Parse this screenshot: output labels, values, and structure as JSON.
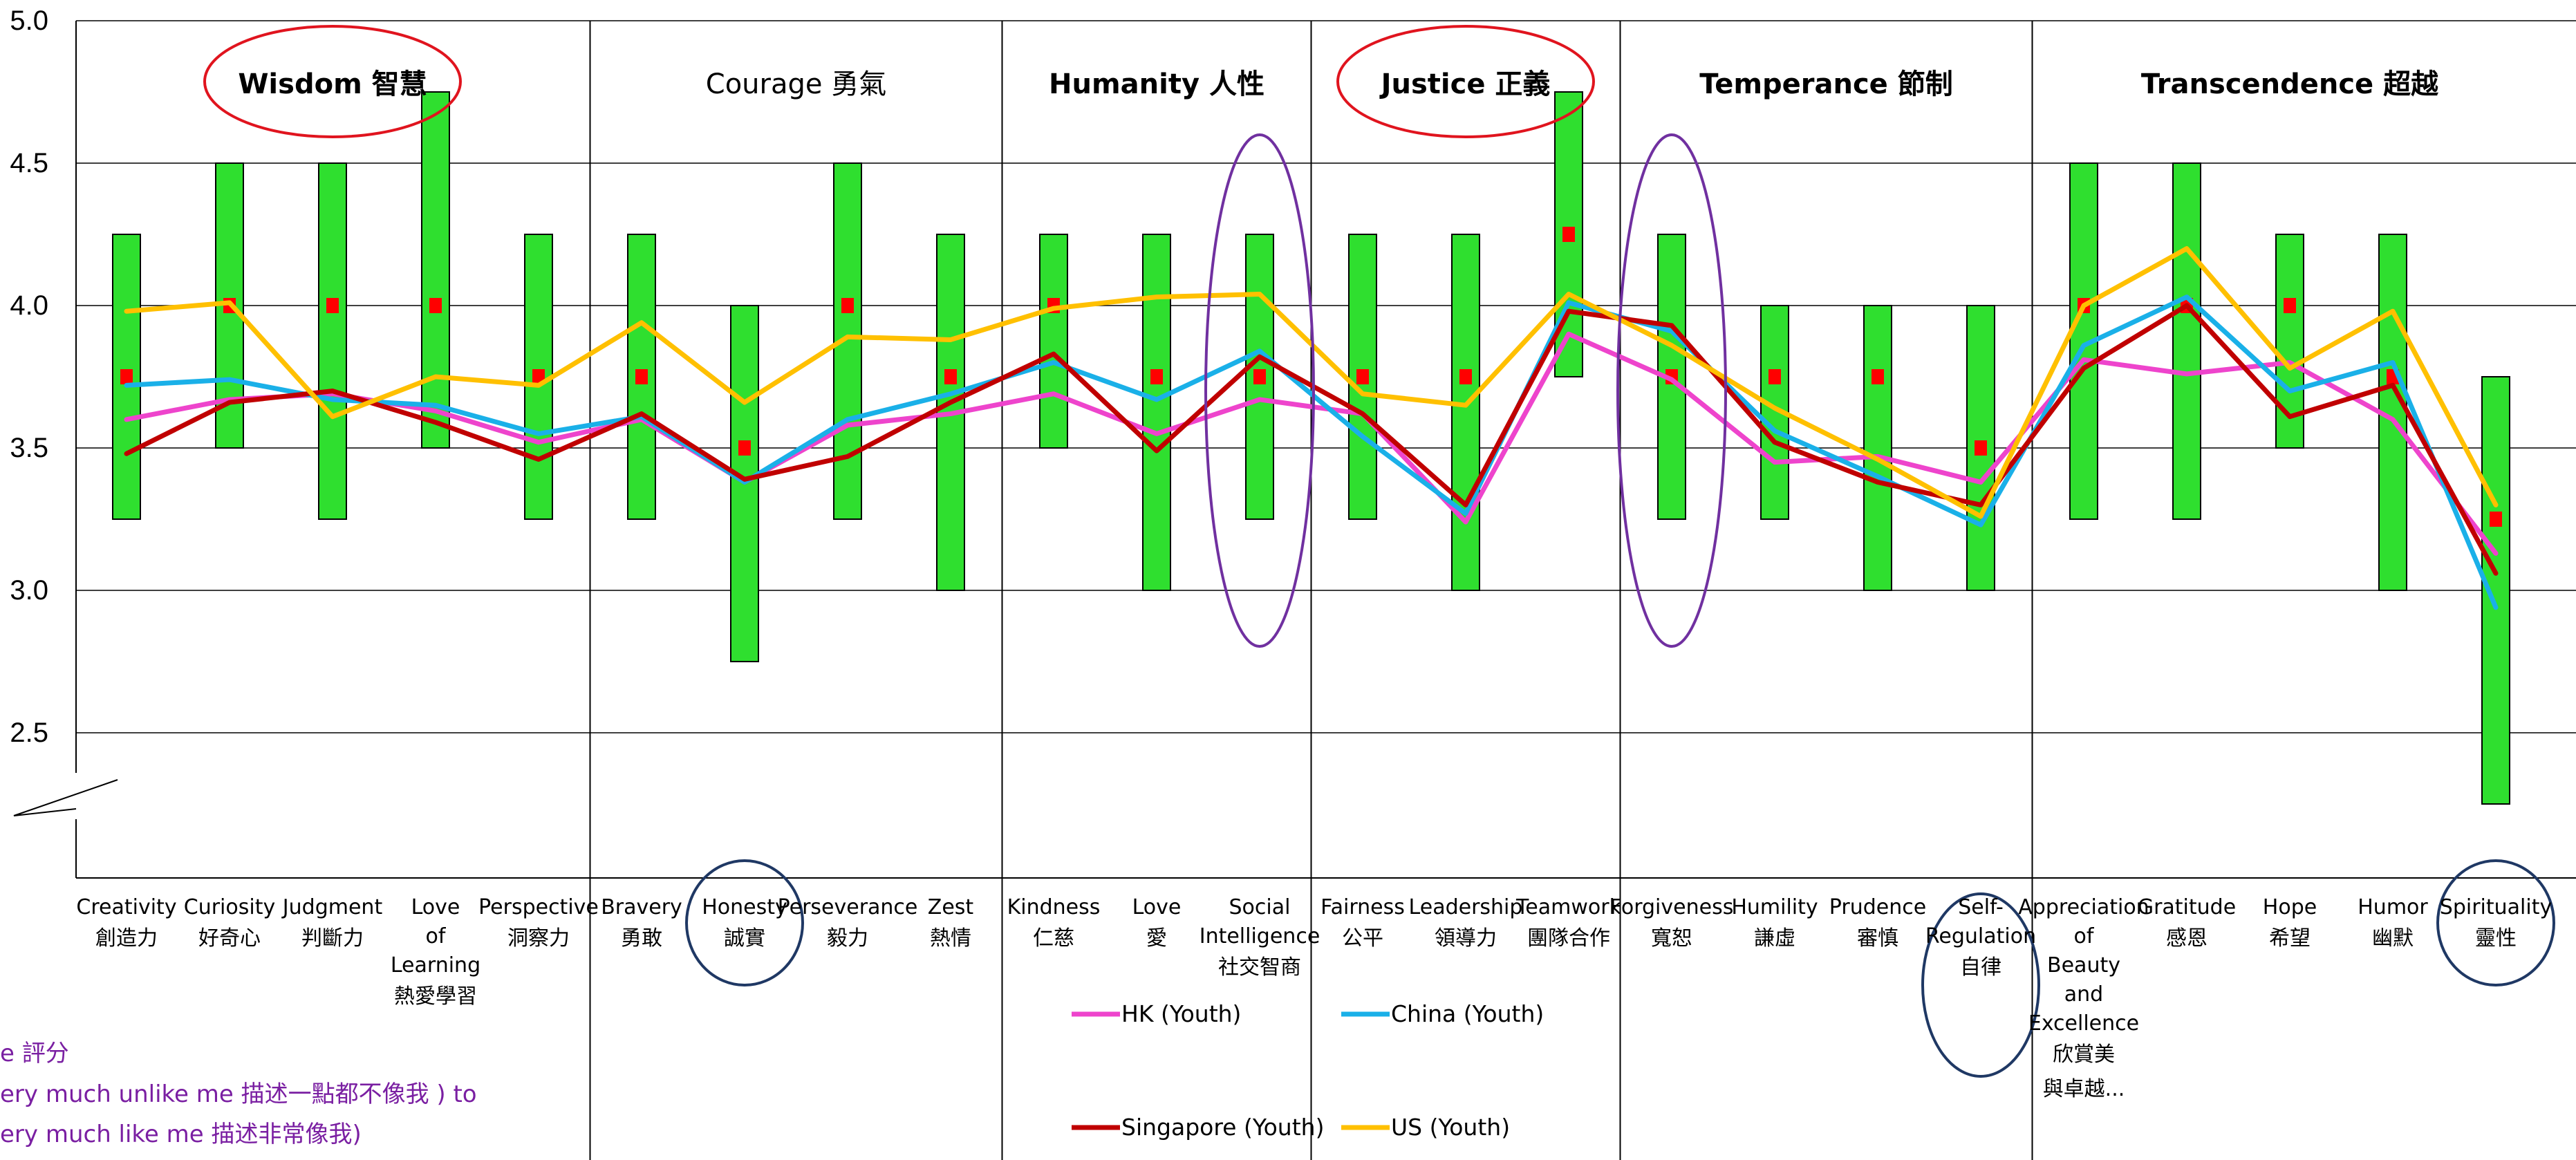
{
  "chart_data": {
    "type": "line",
    "y_ticks": [
      "5.0",
      "4.5",
      "4.0",
      "3.5",
      "3.0",
      "2.5"
    ],
    "ylim": [
      2.0,
      5.0
    ],
    "y_axis_break": true,
    "grid": true,
    "legend_position": "bottom",
    "groups": [
      {
        "label": "Wisdom 智慧",
        "bold": true,
        "count": 5,
        "circle": "red"
      },
      {
        "label": "Courage 勇氣",
        "bold": false,
        "count": 4,
        "circle": ""
      },
      {
        "label": "Humanity 人性",
        "bold": true,
        "count": 3,
        "circle": ""
      },
      {
        "label": "Justice 正義",
        "bold": true,
        "count": 3,
        "circle": "red"
      },
      {
        "label": "Temperance 節制",
        "bold": true,
        "count": 4,
        "circle": ""
      },
      {
        "label": "Transcendence 超越",
        "bold": true,
        "count": 5,
        "circle": ""
      }
    ],
    "categories": [
      {
        "en": [
          "Creativity"
        ],
        "zh": "創造力"
      },
      {
        "en": [
          "Curiosity"
        ],
        "zh": "好奇心"
      },
      {
        "en": [
          "Judgment"
        ],
        "zh": "判斷力"
      },
      {
        "en": [
          "Love",
          "of",
          "Learning"
        ],
        "zh": "熱愛學習"
      },
      {
        "en": [
          "Perspective"
        ],
        "zh": "洞察力"
      },
      {
        "en": [
          "Bravery"
        ],
        "zh": "勇敢"
      },
      {
        "en": [
          "Honesty"
        ],
        "zh": "誠實"
      },
      {
        "en": [
          "Perseverance"
        ],
        "zh": "毅力"
      },
      {
        "en": [
          "Zest"
        ],
        "zh": "熱情"
      },
      {
        "en": [
          "Kindness"
        ],
        "zh": "仁慈"
      },
      {
        "en": [
          "Love"
        ],
        "zh": "愛"
      },
      {
        "en": [
          "Social",
          "Intelligence"
        ],
        "zh": "社交智商"
      },
      {
        "en": [
          "Fairness"
        ],
        "zh": "公平"
      },
      {
        "en": [
          "Leadership"
        ],
        "zh": "領導力"
      },
      {
        "en": [
          "Teamwork"
        ],
        "zh": "團隊合作"
      },
      {
        "en": [
          "Forgiveness"
        ],
        "zh": "寬恕"
      },
      {
        "en": [
          "Humility"
        ],
        "zh": "謙虛"
      },
      {
        "en": [
          "Prudence"
        ],
        "zh": "審慎"
      },
      {
        "en": [
          "Self-",
          "Regulation"
        ],
        "zh": "自律"
      },
      {
        "en": [
          "Appreciation",
          "of",
          "Beauty",
          "and",
          "Excellence"
        ],
        "zh": "欣賞美",
        "zh2": "與卓越..."
      },
      {
        "en": [
          "Gratitude"
        ],
        "zh": "感恩"
      },
      {
        "en": [
          "Hope"
        ],
        "zh": "希望"
      },
      {
        "en": [
          "Humor"
        ],
        "zh": "幽默"
      },
      {
        "en": [
          "Spirituality"
        ],
        "zh": "靈性"
      }
    ],
    "ranges": [
      [
        3.25,
        4.25
      ],
      [
        3.5,
        4.5
      ],
      [
        3.25,
        4.5
      ],
      [
        3.5,
        4.75
      ],
      [
        3.25,
        4.25
      ],
      [
        3.25,
        4.25
      ],
      [
        2.75,
        4.0
      ],
      [
        3.25,
        4.5
      ],
      [
        3.0,
        4.25
      ],
      [
        3.5,
        4.25
      ],
      [
        3.0,
        4.25
      ],
      [
        3.25,
        4.25
      ],
      [
        3.25,
        4.25
      ],
      [
        3.0,
        4.25
      ],
      [
        3.75,
        4.75
      ],
      [
        3.25,
        4.25
      ],
      [
        3.25,
        4.0
      ],
      [
        3.0,
        4.0
      ],
      [
        3.0,
        4.0
      ],
      [
        3.25,
        4.5
      ],
      [
        3.25,
        4.5
      ],
      [
        3.5,
        4.25
      ],
      [
        3.0,
        4.25
      ],
      [
        2.25,
        3.75
      ]
    ],
    "medians": [
      3.75,
      4.0,
      4.0,
      4.0,
      3.75,
      3.75,
      3.5,
      4.0,
      3.75,
      4.0,
      3.75,
      3.75,
      3.75,
      3.75,
      4.25,
      3.75,
      3.75,
      3.75,
      3.5,
      4.0,
      4.0,
      4.0,
      3.75,
      3.25
    ],
    "series": [
      {
        "name": "HK (Youth)",
        "color": "#ee44cc",
        "values": [
          3.6,
          3.67,
          3.69,
          3.63,
          3.52,
          3.6,
          3.38,
          3.58,
          3.62,
          3.69,
          3.55,
          3.67,
          3.62,
          3.24,
          3.9,
          3.74,
          3.45,
          3.47,
          3.38,
          3.81,
          3.76,
          3.8,
          3.6,
          3.13
        ]
      },
      {
        "name": "China (Youth)",
        "color": "#1ab0e8",
        "values": [
          3.72,
          3.74,
          3.67,
          3.65,
          3.55,
          3.61,
          3.38,
          3.6,
          3.69,
          3.8,
          3.67,
          3.84,
          3.54,
          3.27,
          4.01,
          3.91,
          3.56,
          3.4,
          3.23,
          3.86,
          4.03,
          3.7,
          3.8,
          2.94
        ]
      },
      {
        "name": "Singapore (Youth)",
        "color": "#c00000",
        "values": [
          3.48,
          3.66,
          3.7,
          3.59,
          3.46,
          3.62,
          3.39,
          3.47,
          3.66,
          3.83,
          3.49,
          3.82,
          3.62,
          3.3,
          3.98,
          3.93,
          3.52,
          3.38,
          3.3,
          3.78,
          4.0,
          3.61,
          3.72,
          3.06
        ]
      },
      {
        "name": "US (Youth)",
        "color": "#ffc000",
        "values": [
          3.98,
          4.01,
          3.61,
          3.75,
          3.72,
          3.94,
          3.66,
          3.89,
          3.88,
          3.99,
          4.03,
          4.04,
          3.69,
          3.65,
          4.04,
          3.86,
          3.64,
          3.46,
          3.26,
          4.0,
          4.2,
          3.78,
          3.98,
          3.3
        ]
      }
    ],
    "highlight_ellipses": [
      {
        "category": "Social Intelligence",
        "color": "#7030a0"
      },
      {
        "category": "Forgiveness",
        "color": "#7030a0"
      }
    ],
    "highlight_circles": [
      {
        "category": "Honesty",
        "color": "#1f3864"
      },
      {
        "category": "Self-Regulation",
        "color": "#1f3864"
      },
      {
        "category": "Spirituality",
        "color": "#1f3864"
      }
    ],
    "note_lines": [
      "e 評分",
      "ery much unlike me 描述一點都不像我 ) to",
      "ery much like me 描述非常像我)"
    ]
  }
}
